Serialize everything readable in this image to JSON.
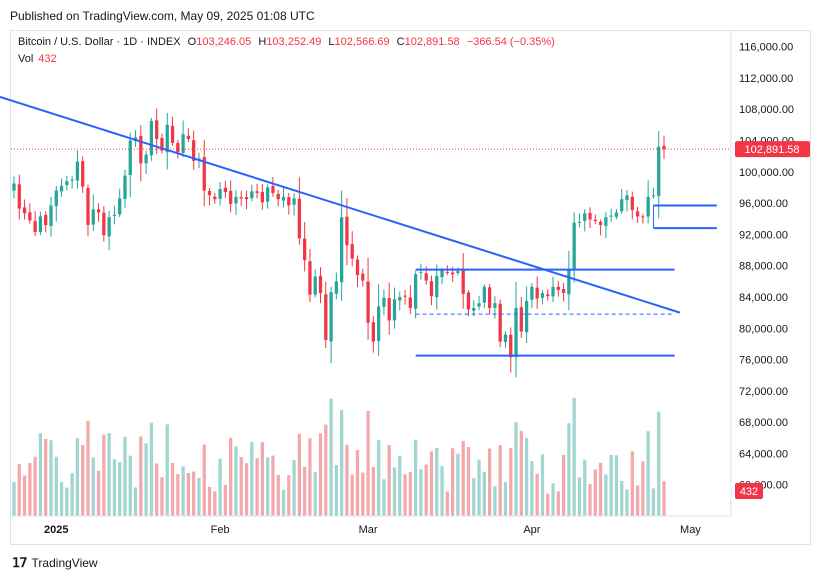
{
  "header": {
    "published": "Published on TradingView.com, May 09, 2025 01:08 UTC"
  },
  "legend": {
    "title": "Bitcoin / U.S. Dollar · 1D · INDEX",
    "o_label": "O",
    "o": "103,246.05",
    "h_label": "H",
    "h": "103,252.49",
    "l_label": "L",
    "l": "102,566.69",
    "c_label": "C",
    "c": "102,891.58",
    "change": "−366.54 (−0.35%)",
    "vol_label": "Vol",
    "vol": "432"
  },
  "brand": {
    "logo": "𝟣𝟩",
    "name": "TradingView"
  },
  "colors": {
    "up": "#26a69a",
    "down": "#f23645",
    "vol_up": "#9fd6cf",
    "vol_down": "#f3a9ac",
    "line": "#2962ff",
    "price_label": "#f23645"
  },
  "chart_data": {
    "type": "candlestick",
    "ylim": [
      56000,
      118000
    ],
    "y_ticks": [
      "60,000.00",
      "64,000.00",
      "68,000.00",
      "72,000.00",
      "76,000.00",
      "80,000.00",
      "84,000.00",
      "88,000.00",
      "92,000.00",
      "96,000.00",
      "100,000.00",
      "104,000.00",
      "108,000.00",
      "112,000.00",
      "116,000.00"
    ],
    "y_tick_values": [
      60000,
      64000,
      68000,
      72000,
      76000,
      80000,
      84000,
      88000,
      92000,
      96000,
      100000,
      104000,
      108000,
      112000,
      116000
    ],
    "x_labels": [
      {
        "label": "2025",
        "date": "2025-01-01",
        "bold": true
      },
      {
        "label": "Feb",
        "date": "2025-02-01",
        "bold": false
      },
      {
        "label": "Mar",
        "date": "2025-03-01",
        "bold": false
      },
      {
        "label": "Apr",
        "date": "2025-04-01",
        "bold": false
      },
      {
        "label": "May",
        "date": "2025-05-01",
        "bold": false
      }
    ],
    "first_date": "2024-12-24",
    "last_price": 102891.58,
    "last_price_label": "102,891.58",
    "last_volume_label": "432",
    "closes": [
      98500,
      95300,
      94700,
      93800,
      92300,
      94300,
      93200,
      95700,
      97600,
      98200,
      98800,
      99000,
      101300,
      98100,
      93200,
      95200,
      94800,
      91900,
      94200,
      94500,
      96600,
      99500,
      104000,
      104400,
      101100,
      102200,
      106500,
      104200,
      102700,
      106000,
      103700,
      102500,
      104800,
      104200,
      101400,
      101700,
      97600,
      97000,
      96500,
      97800,
      97400,
      95900,
      96800,
      96600,
      96500,
      97500,
      97300,
      96100,
      98000,
      97300,
      96500,
      96800,
      95700,
      96600,
      91500,
      88700,
      84300,
      86600,
      84500,
      78500,
      84600,
      86000,
      94200,
      90600,
      88900,
      86800,
      86100,
      80700,
      78300,
      82800,
      83900,
      81000,
      83700,
      84000,
      84100,
      82600,
      86900,
      87200,
      86100,
      84100,
      86700,
      87400,
      87200,
      86900,
      87300,
      84400,
      82400,
      82600,
      83200,
      85300,
      82600,
      83200,
      78300,
      79200,
      76300,
      82600,
      79600,
      83500,
      85300,
      83800,
      84500,
      84100,
      85300,
      84900,
      84500,
      87500,
      93500,
      93600,
      94700,
      93900,
      93700,
      93200,
      94200,
      94400,
      94800,
      96500,
      97000,
      95100,
      94300,
      94200,
      96800,
      97000,
      103200,
      102900
    ],
    "volume_max": 72000,
    "patterns": {
      "trendline": {
        "from": {
          "date": "2024-12-17",
          "price": 110500
        },
        "to": {
          "date": "2025-04-29",
          "price": 82000
        }
      },
      "range_top": {
        "from": "2025-03-10",
        "to": "2025-04-28",
        "price": 87500
      },
      "range_bottom": {
        "from": "2025-03-10",
        "to": "2025-04-28",
        "price": 76500
      },
      "range_mid": {
        "from": "2025-03-10",
        "to": "2025-04-28",
        "price": 81800
      },
      "box_top": {
        "from": "2025-04-24",
        "to": "2025-05-06",
        "price": 95700
      },
      "box_bottom": {
        "from": "2025-04-24",
        "to": "2025-05-06",
        "price": 92800
      }
    }
  }
}
